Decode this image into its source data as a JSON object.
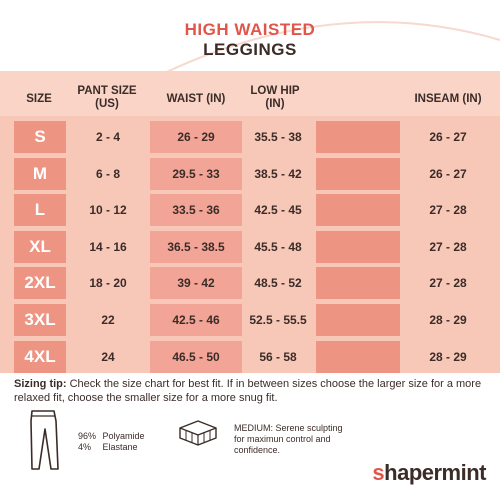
{
  "title": {
    "line1": "HIGH WAISTED",
    "line2": "LEGGINGS"
  },
  "colors": {
    "accent": "#e0564a",
    "header_bg": "#f9d4c7",
    "row_bg": "#f7c7b7",
    "cell_dark": "#ee9483",
    "cell_mid": "#f2a596",
    "text": "#3b2c28"
  },
  "table": {
    "headers": {
      "size": "SIZE",
      "pant_size": "PANT SIZE (US)",
      "waist": "WAIST (IN)",
      "low_hip": "LOW HIP (IN)",
      "inseam": "INSEAM (IN)"
    },
    "rows": [
      {
        "size": "S",
        "pant": "2 - 4",
        "waist": "26 - 29",
        "hip": "35.5 - 38",
        "inseam": "26 - 27"
      },
      {
        "size": "M",
        "pant": "6 - 8",
        "waist": "29.5 - 33",
        "hip": "38.5 - 42",
        "inseam": "26 - 27"
      },
      {
        "size": "L",
        "pant": "10 - 12",
        "waist": "33.5 - 36",
        "hip": "42.5 - 45",
        "inseam": "27 - 28"
      },
      {
        "size": "XL",
        "pant": "14 - 16",
        "waist": "36.5 - 38.5",
        "hip": "45.5 - 48",
        "inseam": "27 - 28"
      },
      {
        "size": "2XL",
        "pant": "18 - 20",
        "waist": "39 - 42",
        "hip": "48.5 - 52",
        "inseam": "27 - 28"
      },
      {
        "size": "3XL",
        "pant": "22",
        "waist": "42.5 - 46",
        "hip": "52.5 - 55.5",
        "inseam": "28 - 29"
      },
      {
        "size": "4XL",
        "pant": "24",
        "waist": "46.5 - 50",
        "hip": "56 - 58",
        "inseam": "28 - 29"
      }
    ]
  },
  "tip": {
    "label": "Sizing tip:",
    "text": " Check the size chart for best fit. If in between sizes choose the larger size for a more relaxed fit, choose the smaller size for a more snug fit."
  },
  "fabric": {
    "icon": "leggings-icon",
    "items": [
      {
        "pct": "96%",
        "name": "Polyamide"
      },
      {
        "pct": "4%",
        "name": "Elastane"
      }
    ]
  },
  "compression": {
    "icon": "compression-icon",
    "text": "MEDIUM: Serene sculpting for maximun control and confidence."
  },
  "logo": {
    "text": "shapermint"
  }
}
